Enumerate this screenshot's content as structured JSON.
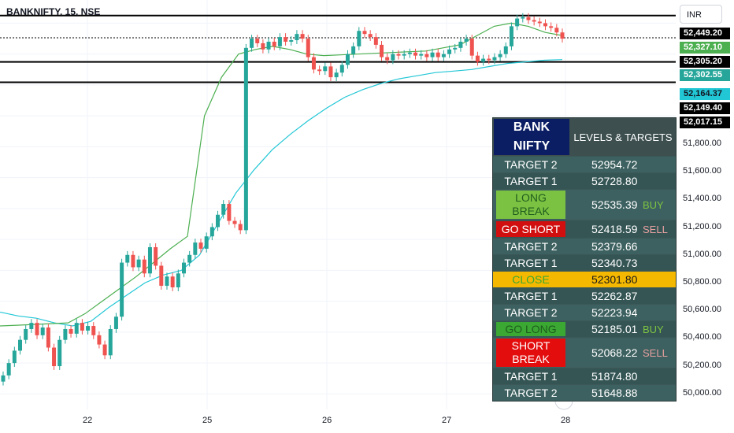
{
  "symbol_title": "BANKNIFTY, 15, NSE",
  "currency": "INR",
  "colors": {
    "up": "#26a69a",
    "down": "#ef5350",
    "ema_fast": "#4caf50",
    "ema_slow": "#22c7d6",
    "table_bg": "#2f4f4f",
    "table_head": "#0b1e63",
    "long_break": "#7cc242",
    "go_short": "#d10f0f",
    "close": "#f5b800",
    "go_long": "#3aa832",
    "short_break": "#e30d0d"
  },
  "price_tags": [
    {
      "value": "52,449.20",
      "bg": "#000000",
      "fg": "#ffffff"
    },
    {
      "value": "52,327.10",
      "bg": "#4caf50",
      "fg": "#ffffff"
    },
    {
      "value": "52,305.20",
      "bg": "#000000",
      "fg": "#ffffff"
    },
    {
      "value": "52,302.55",
      "bg": "#26a69a",
      "fg": "#ffffff"
    },
    {
      "value": "52,164.37",
      "bg": "#22c7d6",
      "fg": "#131722"
    },
    {
      "value": "52,149.40",
      "bg": "#000000",
      "fg": "#ffffff"
    },
    {
      "value": "52,017.15",
      "bg": "#000000",
      "fg": "#ffffff"
    }
  ],
  "price_axis": [
    "51,800.00",
    "51,600.00",
    "51,400.00",
    "51,200.00",
    "51,000.00",
    "50,800.00",
    "50,600.00",
    "50,400.00",
    "50,200.00",
    "50,000.00"
  ],
  "time_axis": [
    "22",
    "25",
    "26",
    "27",
    "28"
  ],
  "levels_table": {
    "header_left": "BANK NIFTY",
    "header_right": "LEVELS & TARGETS",
    "rows": [
      {
        "label": "TARGET 2",
        "value": "52954.72",
        "action": "",
        "style": "plain"
      },
      {
        "label": "TARGET 1",
        "value": "52728.80",
        "action": "",
        "style": "plain"
      },
      {
        "label": "LONG BREAK",
        "value": "52535.39",
        "action": "BUY",
        "style": "long_break"
      },
      {
        "label": "GO SHORT",
        "value": "52418.59",
        "action": "SELL",
        "style": "go_short"
      },
      {
        "label": "TARGET 2",
        "value": "52379.66",
        "action": "",
        "style": "plain"
      },
      {
        "label": "TARGET 1",
        "value": "52340.73",
        "action": "",
        "style": "plain"
      },
      {
        "label": "CLOSE",
        "value": "52301.80",
        "action": "",
        "style": "close"
      },
      {
        "label": "TARGET 1",
        "value": "52262.87",
        "action": "",
        "style": "plain"
      },
      {
        "label": "TARGET 2",
        "value": "52223.94",
        "action": "",
        "style": "plain"
      },
      {
        "label": "GO LONG",
        "value": "52185.01",
        "action": "BUY",
        "style": "go_long"
      },
      {
        "label": "SHORT BREAK",
        "value": "52068.22",
        "action": "SELL",
        "style": "short_break"
      },
      {
        "label": "TARGET 1",
        "value": "51874.80",
        "action": "",
        "style": "plain"
      },
      {
        "label": "TARGET 2",
        "value": "51648.88",
        "action": "",
        "style": "plain"
      }
    ]
  },
  "chart_data": {
    "type": "candlestick",
    "title": "BANKNIFTY, 15, NSE",
    "ylim": [
      49900,
      52550
    ],
    "x_ticks": [
      "22",
      "25",
      "26",
      "27",
      "28"
    ],
    "horizontal_levels": [
      52449.2,
      52305.2,
      52149.4,
      52017.15
    ],
    "candles_close_approx": [
      50120,
      50200,
      50280,
      50350,
      50420,
      50460,
      50380,
      50430,
      50300,
      50180,
      50350,
      50420,
      50390,
      50460,
      50410,
      50440,
      50380,
      50320,
      50250,
      50420,
      50500,
      50850,
      50900,
      50820,
      50870,
      50780,
      50950,
      50830,
      50700,
      50760,
      50690,
      50780,
      50850,
      50900,
      50980,
      50940,
      51020,
      51080,
      51160,
      51230,
      51120,
      51100,
      51060,
      52240,
      52300,
      52270,
      52230,
      52280,
      52250,
      52310,
      52280,
      52290,
      52330,
      52300,
      52180,
      52100,
      52090,
      52120,
      52050,
      52080,
      52130,
      52200,
      52250,
      52350,
      52330,
      52310,
      52260,
      52180,
      52160,
      52200,
      52190,
      52200,
      52210,
      52190,
      52200,
      52180,
      52210,
      52180,
      52200,
      52230,
      52240,
      52280,
      52300,
      52190,
      52150,
      52170,
      52160,
      52180,
      52200,
      52250,
      52380,
      52430,
      52440,
      52420,
      52410,
      52400,
      52380,
      52370,
      52340,
      52300
    ],
    "series": [
      {
        "name": "",
        "type": "ema",
        "values": [
          50440,
          50445,
          50450,
          50455,
          50460,
          50520,
          50600,
          50680,
          50760,
          50850,
          50940,
          51020,
          51800,
          52050,
          52200,
          52230,
          52250,
          52230,
          52200,
          52190,
          52195,
          52200,
          52205,
          52210,
          52215,
          52220,
          52240,
          52260,
          52320,
          52380,
          52400,
          52380,
          52340,
          52320
        ]
      },
      {
        "name": "",
        "type": "ema",
        "values": [
          50530,
          50505,
          50490,
          50460,
          50440,
          50470,
          50560,
          50640,
          50720,
          50770,
          50800,
          50900,
          51100,
          51300,
          51450,
          51580,
          51680,
          51770,
          51850,
          51920,
          51970,
          52010,
          52040,
          52060,
          52080,
          52090,
          52100,
          52120,
          52140,
          52150,
          52160,
          52164
        ]
      }
    ]
  }
}
